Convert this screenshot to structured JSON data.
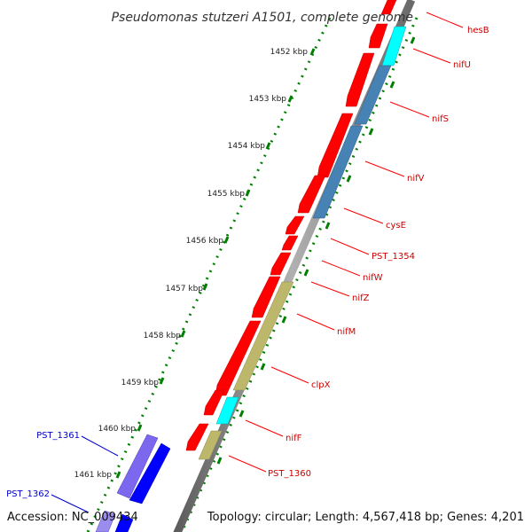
{
  "map": {
    "title": "Pseudomonas stutzeri A1501, complete genome",
    "accession": "Accession: NC_009434",
    "topology": "Topology: circular; Length: 4,567,418 bp; Genes: 4,201",
    "kbp_ticks": [
      "1452 kbp",
      "1453 kbp",
      "1454 kbp",
      "1455 kbp",
      "1456 kbp",
      "1457 kbp",
      "1458 kbp",
      "1459 kbp",
      "1460 kbp",
      "1461 kbp"
    ],
    "right_labels": [
      "hesB",
      "nifU",
      "nifS",
      "nifV",
      "cysE",
      "PST_1354",
      "nifW",
      "nifZ",
      "nifM",
      "clpX",
      "nifF",
      "PST_1360"
    ],
    "left_labels": [
      "PST_1361",
      "PST_1362"
    ],
    "colors": {
      "cds": "#ff0000",
      "nif_blue": "#4682b4",
      "cyan": "#00ffff",
      "khaki": "#bdb76b",
      "purple": "#7b68ee",
      "blue": "#0000ff",
      "right_label": "#cc0000",
      "left_label": "#0000cc",
      "tick": "#008000",
      "backbone": "#808080"
    }
  }
}
